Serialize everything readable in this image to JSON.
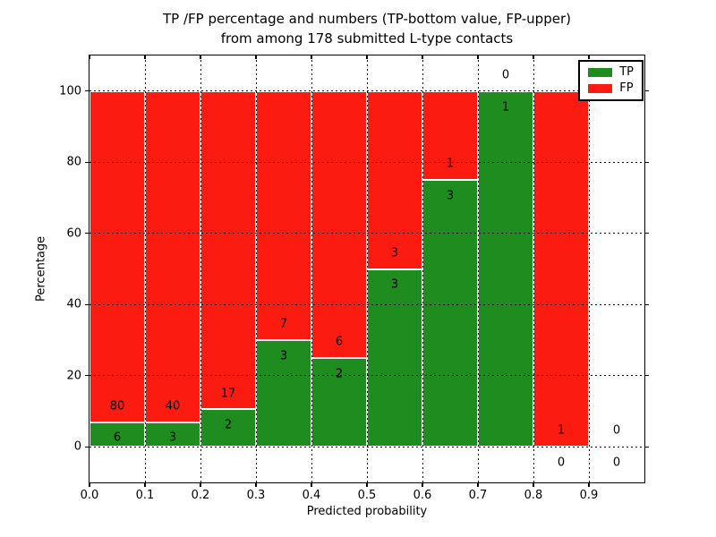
{
  "title": {
    "line1": "TP /FP percentage and numbers (TP-bottom value, FP-upper)",
    "line2": "from among 178 submitted L-type contacts"
  },
  "chart_data": {
    "type": "bar",
    "subtype": "stacked-percentage-histogram",
    "title": "TP /FP percentage and numbers (TP-bottom value, FP-upper) from among 178 submitted L-type contacts",
    "xlabel": "Predicted probability",
    "ylabel": "Percentage",
    "xlim": [
      0.0,
      1.0
    ],
    "ylim": [
      -10,
      110
    ],
    "bin_edges": [
      0.0,
      0.1,
      0.2,
      0.3,
      0.4,
      0.5,
      0.6,
      0.7,
      0.8,
      0.9,
      1.0
    ],
    "xtick_labels": [
      "0.0",
      "0.1",
      "0.2",
      "0.3",
      "0.4",
      "0.5",
      "0.6",
      "0.7",
      "0.8",
      "0.9"
    ],
    "ytick_values": [
      0,
      20,
      40,
      60,
      80,
      100
    ],
    "grid": true,
    "grid_style": "dotted black, drawn over bars",
    "legend_position": "upper right",
    "background": "#ffffff",
    "label_offset_units": 4.5,
    "series": [
      {
        "name": "TP",
        "color": "#1f8c1f",
        "counts": [
          6,
          3,
          2,
          3,
          2,
          3,
          3,
          1,
          0,
          0
        ]
      },
      {
        "name": "FP",
        "color": "#fb1b10",
        "counts": [
          80,
          40,
          17,
          7,
          6,
          3,
          1,
          0,
          1,
          0
        ]
      }
    ],
    "tp_percent_heights": [
      6.98,
      6.98,
      10.53,
      30,
      25,
      50,
      75,
      100,
      0,
      0
    ],
    "total_contacts": 178
  }
}
